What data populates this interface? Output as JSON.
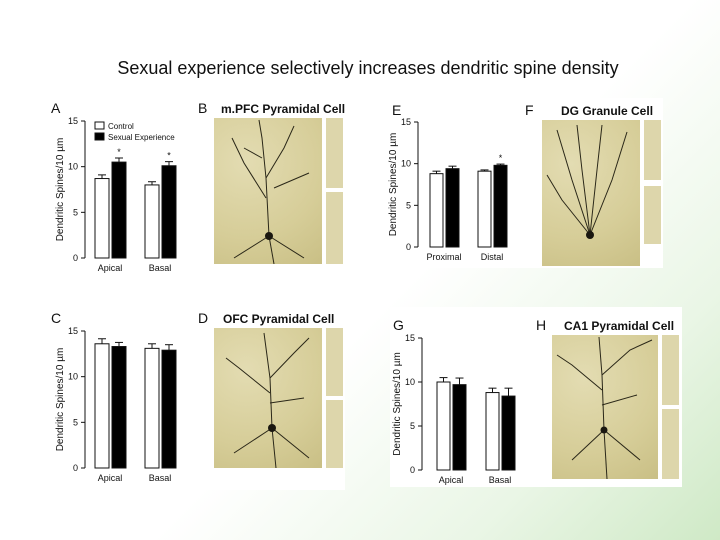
{
  "slide": {
    "title": "Sexual experience selectively increases dendritic spine density"
  },
  "legend": {
    "control": "Control",
    "experience": "Sexual Experience"
  },
  "panels": {
    "A": {
      "letter": "A"
    },
    "B": {
      "letter": "B",
      "title": "m.PFC Pyramidal Cell"
    },
    "C": {
      "letter": "C"
    },
    "D": {
      "letter": "D",
      "title": "OFC Pyramidal Cell"
    },
    "E": {
      "letter": "E"
    },
    "F": {
      "letter": "F",
      "title": "DG Granule Cell"
    },
    "G": {
      "letter": "G"
    },
    "H": {
      "letter": "H",
      "title": "CA1 Pyramidal Cell"
    }
  },
  "chart_data": [
    {
      "id": "A",
      "type": "bar",
      "categories": [
        "Apical",
        "Basal"
      ],
      "series": [
        {
          "name": "Control",
          "values": [
            8.7,
            8.0
          ],
          "errors": [
            0.4,
            0.35
          ],
          "color": "#ffffff"
        },
        {
          "name": "Sexual Experience",
          "values": [
            10.5,
            10.1
          ],
          "errors": [
            0.45,
            0.45
          ],
          "color": "#000000"
        }
      ],
      "significance": [
        "*",
        "*"
      ],
      "ylabel": "Dendritic Spines/10 µm",
      "yticks": [
        0,
        5,
        10,
        15
      ],
      "ylim": [
        0,
        15
      ],
      "legend": "top-left"
    },
    {
      "id": "C",
      "type": "bar",
      "categories": [
        "Apical",
        "Basal"
      ],
      "series": [
        {
          "name": "Control",
          "values": [
            13.6,
            13.1
          ],
          "errors": [
            0.55,
            0.5
          ],
          "color": "#ffffff"
        },
        {
          "name": "Sexual Experience",
          "values": [
            13.3,
            12.9
          ],
          "errors": [
            0.45,
            0.6
          ],
          "color": "#000000"
        }
      ],
      "significance": [
        "",
        ""
      ],
      "ylabel": "Dendritic Spines/10 µm",
      "yticks": [
        0,
        5,
        10,
        15
      ],
      "ylim": [
        0,
        15
      ]
    },
    {
      "id": "E",
      "type": "bar",
      "categories": [
        "Proximal",
        "Distal"
      ],
      "series": [
        {
          "name": "Control",
          "values": [
            8.8,
            9.1
          ],
          "errors": [
            0.3,
            0.15
          ],
          "color": "#ffffff"
        },
        {
          "name": "Sexual Experience",
          "values": [
            9.4,
            9.8
          ],
          "errors": [
            0.3,
            0.15
          ],
          "color": "#000000"
        }
      ],
      "significance": [
        "",
        "*"
      ],
      "ylabel": "Dendritic Spines/10 µm",
      "yticks": [
        0,
        5,
        10,
        15
      ],
      "ylim": [
        0,
        15
      ]
    },
    {
      "id": "G",
      "type": "bar",
      "categories": [
        "Apical",
        "Basal"
      ],
      "series": [
        {
          "name": "Control",
          "values": [
            10.0,
            8.8
          ],
          "errors": [
            0.5,
            0.5
          ],
          "color": "#ffffff"
        },
        {
          "name": "Sexual Experience",
          "values": [
            9.7,
            8.4
          ],
          "errors": [
            0.75,
            0.9
          ],
          "color": "#000000"
        }
      ],
      "significance": [
        "",
        ""
      ],
      "ylabel": "Dendritic Spines/10 µm",
      "yticks": [
        0,
        5,
        10,
        15
      ],
      "ylim": [
        0,
        15
      ]
    }
  ]
}
